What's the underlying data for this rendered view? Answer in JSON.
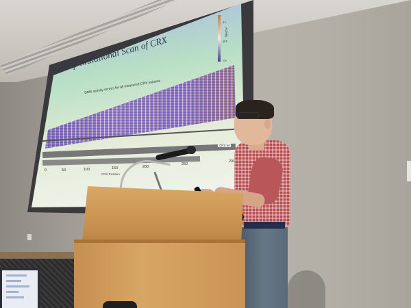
{
  "slide": {
    "title": "A Deep Mutational Scan of CRX",
    "heatmap_title": "DMS activity scores for all measured CRX variants",
    "axis_label": "CRX Position",
    "ticks": [
      "0",
      "50",
      "100",
      "150",
      "200",
      "250",
      "299"
    ],
    "track_label": "CRX wt",
    "colorbar_title": "Activity",
    "colorbar_labels": [
      "2×",
      "WT",
      "½×"
    ]
  },
  "colors": {
    "podium": "#c99455",
    "shirt": "#b84c4f",
    "pants": "#5a6a78",
    "wall": "#b3afa6"
  }
}
